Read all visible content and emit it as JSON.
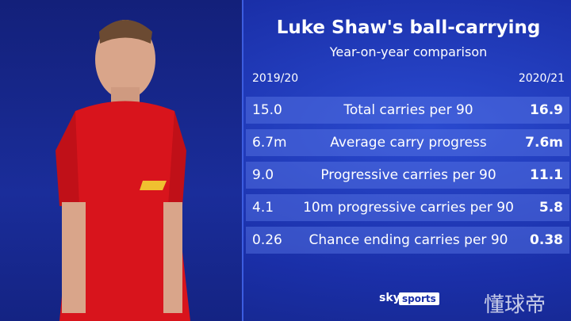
{
  "header": {
    "title": "Luke Shaw's ball-carrying",
    "subtitle": "Year-on-year comparison"
  },
  "table": {
    "columns": [
      "2019/20",
      "2020/21"
    ],
    "rows": [
      [
        "15.0",
        "Total carries per 90",
        "16.9"
      ],
      [
        "6.7m",
        "Average carry progress",
        "7.6m"
      ],
      [
        "9.0",
        "Progressive carries per 90",
        "11.1"
      ],
      [
        "4.1",
        "10m progressive carries per 90",
        "5.8"
      ],
      [
        "0.26",
        "Chance ending carries per 90",
        "0.38"
      ]
    ]
  },
  "logo": {
    "brand": "sky",
    "product": "sports"
  },
  "watermark": "懂球帝"
}
